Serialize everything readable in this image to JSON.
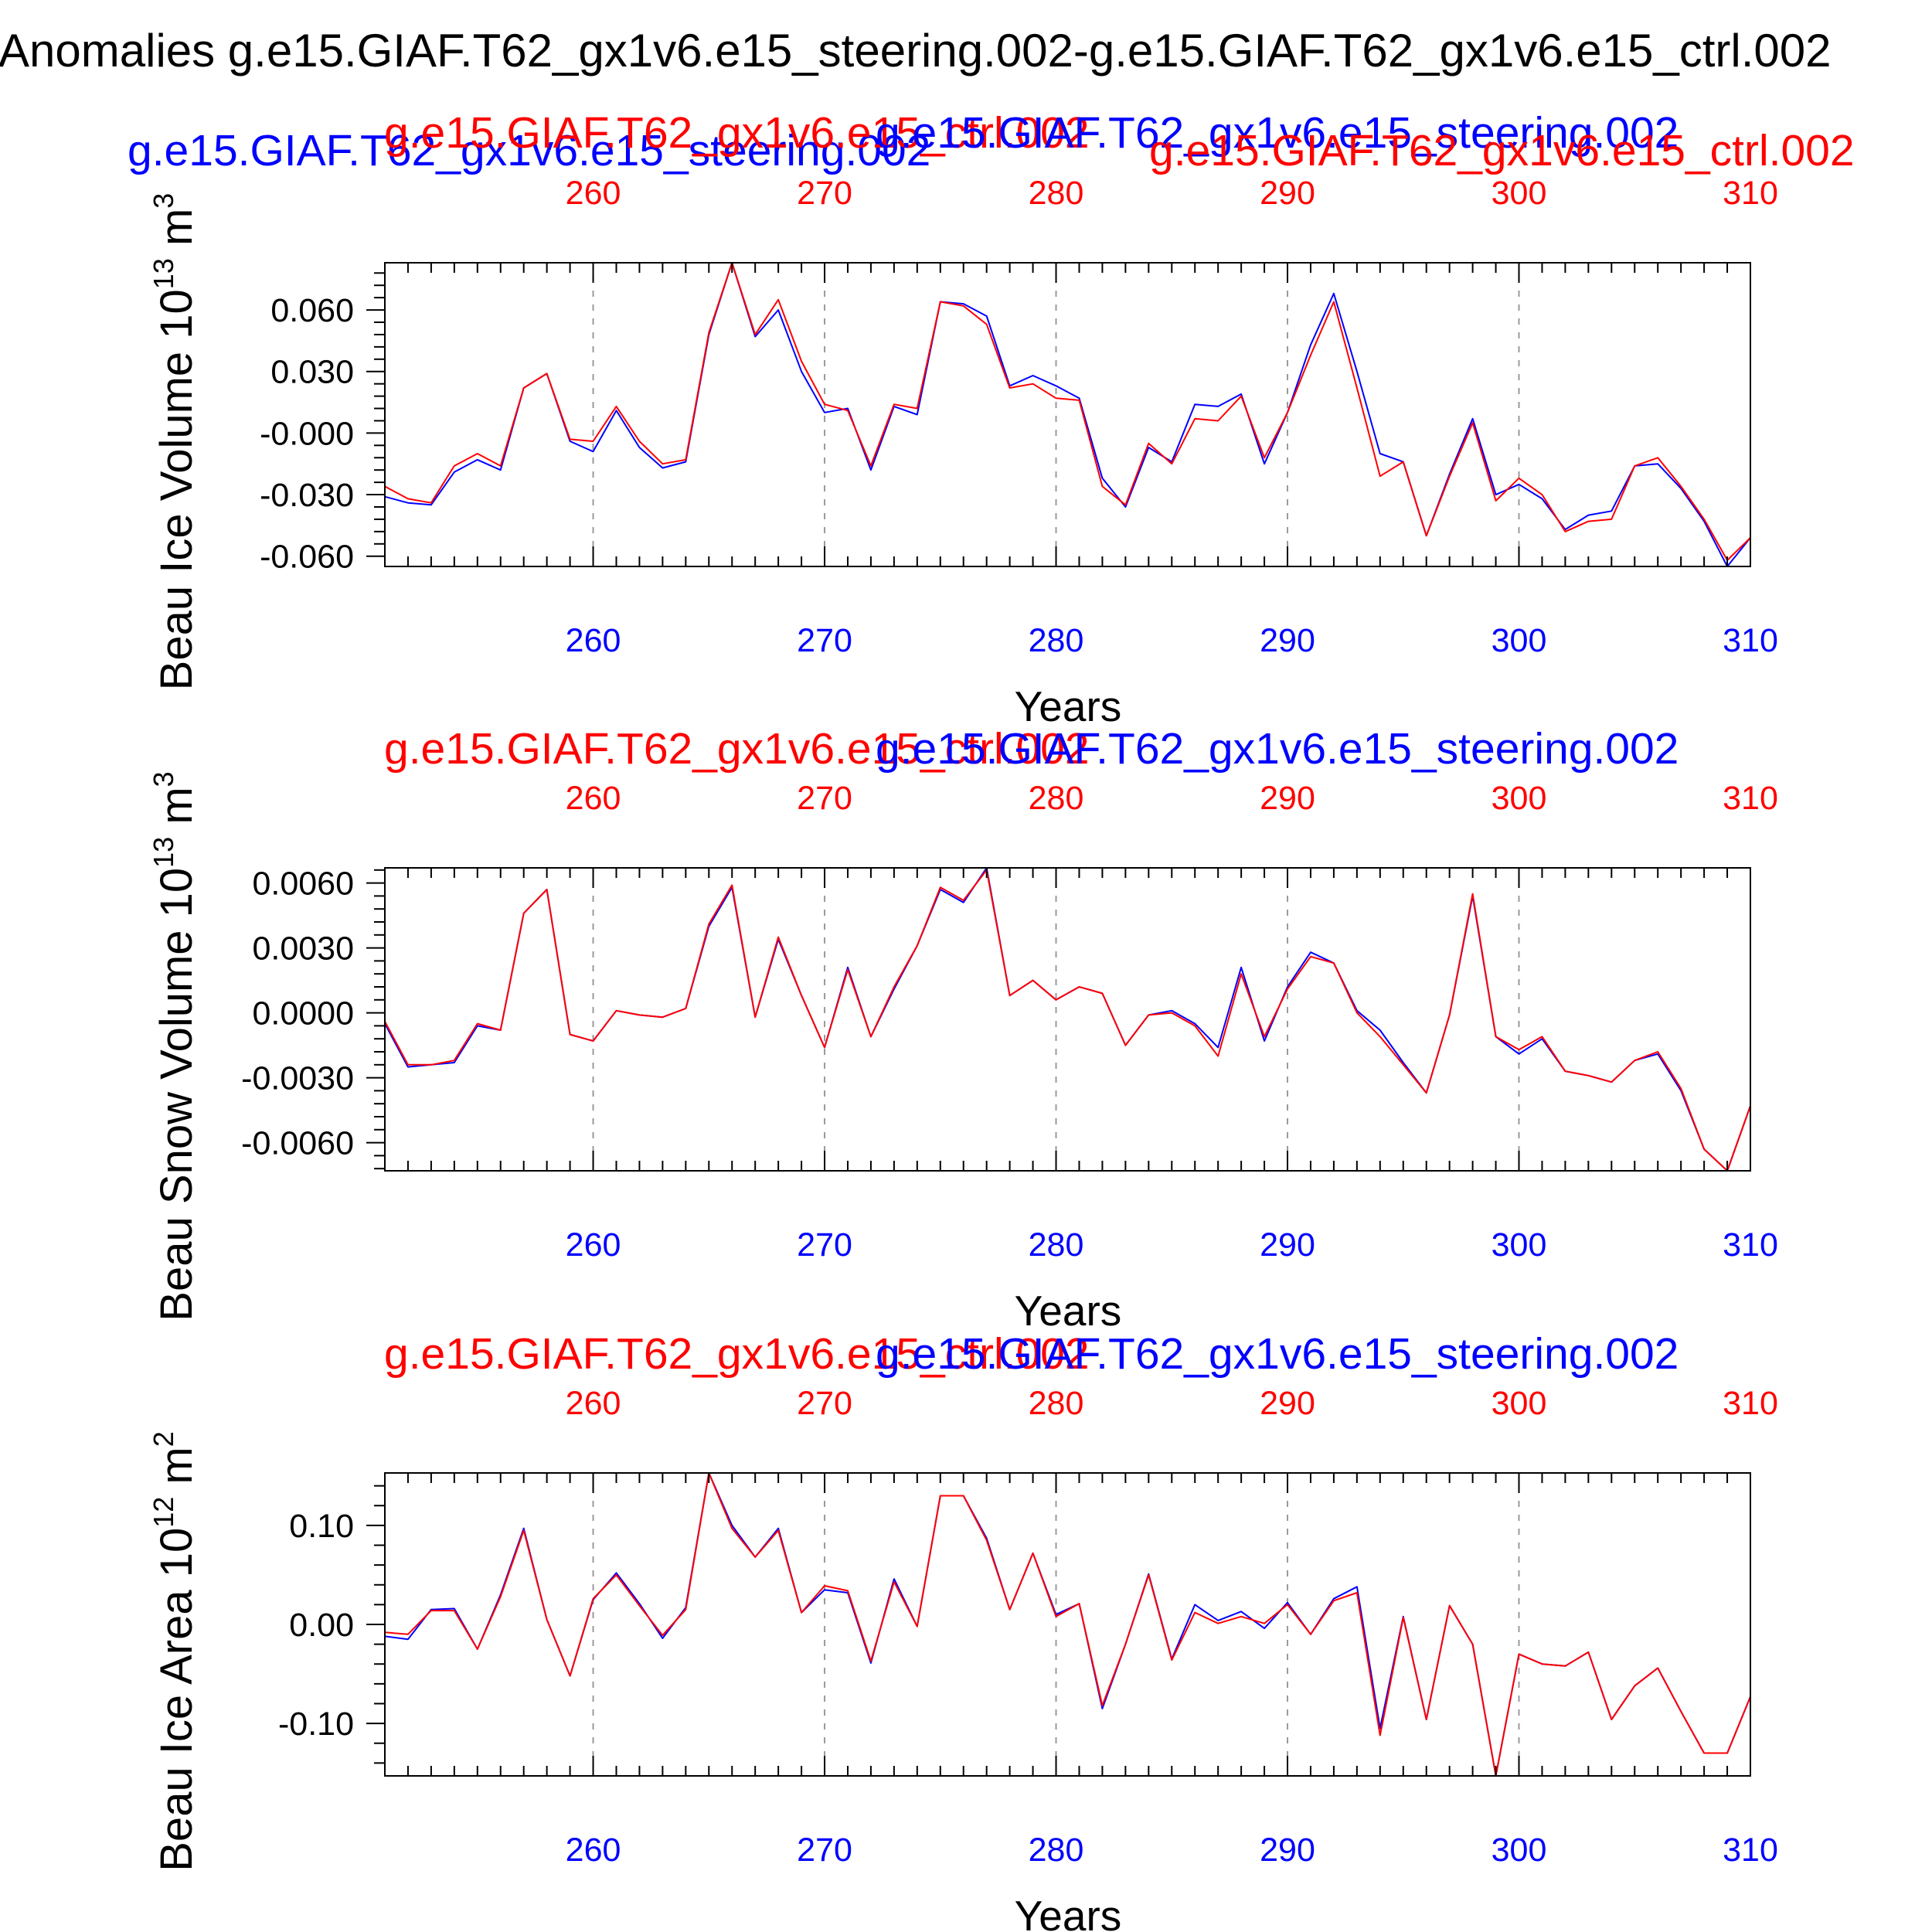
{
  "figure": {
    "title": "Anomalies g.e15.GIAF.T62_gx1v6.e15_steering.002-g.e15.GIAF.T62_gx1v6.e15_ctrl.002"
  },
  "colors": {
    "steering": "#0000ff",
    "ctrl": "#ff0000",
    "axis": "#000000",
    "grid": "#9a9a9a"
  },
  "chart_data": [
    {
      "type": "line",
      "ylabel": "Beau Ice Volume 10",
      "ylabel_exp": "13",
      "ylabel_unit": " m",
      "ylabel_unit_exp": "3",
      "xlabel": "Years",
      "xlim": [
        251,
        310
      ],
      "ylim": [
        -0.065,
        0.083
      ],
      "yticks": [
        -0.06,
        -0.03,
        0.0,
        0.03,
        0.06
      ],
      "yticklabels": [
        "-0.060",
        "-0.030",
        "-0.000",
        "0.030",
        "0.060"
      ],
      "xticks": [
        260,
        270,
        280,
        290,
        300,
        310
      ],
      "xticklabels": [
        "260",
        "270",
        "280",
        "290",
        "300",
        "310"
      ],
      "top_legend": [
        {
          "text": "g.e15.GIAF.T62_gx1v6.e15_steering.002",
          "color": "#0000ff",
          "slot": "left"
        },
        {
          "text": "g.e15.GIAF.T62_gx1v6.e15_ctrl.002",
          "color": "#ff0000",
          "slot": "center"
        },
        {
          "text": "g.e15.GIAF.T62_gx1v6.e15_steering.002",
          "color": "#0000ff",
          "slot": "center-right"
        },
        {
          "text": "g.e15.GIAF.T62_gx1v6.e15_ctrl.002",
          "color": "#ff0000",
          "slot": "right"
        }
      ],
      "x": [
        251,
        252,
        253,
        254,
        255,
        256,
        257,
        258,
        259,
        260,
        261,
        262,
        263,
        264,
        265,
        266,
        267,
        268,
        269,
        270,
        271,
        272,
        273,
        274,
        275,
        276,
        277,
        278,
        279,
        280,
        281,
        282,
        283,
        284,
        285,
        286,
        287,
        288,
        289,
        290,
        291,
        292,
        293,
        294,
        295,
        296,
        297,
        298,
        299,
        300,
        301,
        302,
        303,
        304,
        305,
        306,
        307,
        308,
        309,
        310
      ],
      "series": [
        {
          "name": "g.e15.GIAF.T62_gx1v6.e15_steering.002",
          "color": "#0000ff",
          "values": [
            -0.031,
            -0.034,
            -0.035,
            -0.019,
            -0.013,
            -0.018,
            0.022,
            0.029,
            -0.004,
            -0.009,
            0.011,
            -0.007,
            -0.017,
            -0.014,
            0.048,
            0.083,
            0.047,
            0.06,
            0.03,
            0.01,
            0.012,
            -0.018,
            0.013,
            0.009,
            0.064,
            0.063,
            0.057,
            0.023,
            0.028,
            0.023,
            0.017,
            -0.022,
            -0.036,
            -0.007,
            -0.014,
            0.014,
            0.013,
            0.019,
            -0.015,
            0.01,
            0.043,
            0.068,
            0.03,
            -0.01,
            -0.014,
            -0.05,
            -0.02,
            0.007,
            -0.03,
            -0.025,
            -0.032,
            -0.047,
            -0.04,
            -0.038,
            -0.016,
            -0.015,
            -0.027,
            -0.043,
            -0.065,
            -0.051
          ]
        },
        {
          "name": "g.e15.GIAF.T62_gx1v6.e15_ctrl.002",
          "color": "#ff0000",
          "values": [
            -0.026,
            -0.032,
            -0.034,
            -0.016,
            -0.01,
            -0.016,
            0.022,
            0.029,
            -0.003,
            -0.004,
            0.013,
            -0.004,
            -0.015,
            -0.013,
            0.049,
            0.083,
            0.048,
            0.065,
            0.035,
            0.014,
            0.011,
            -0.016,
            0.014,
            0.012,
            0.064,
            0.062,
            0.053,
            0.022,
            0.024,
            0.017,
            0.016,
            -0.026,
            -0.035,
            -0.005,
            -0.015,
            0.007,
            0.006,
            0.018,
            -0.012,
            0.01,
            0.038,
            0.064,
            0.022,
            -0.021,
            -0.014,
            -0.05,
            -0.021,
            0.005,
            -0.033,
            -0.022,
            -0.03,
            -0.048,
            -0.043,
            -0.042,
            -0.016,
            -0.012,
            -0.026,
            -0.042,
            -0.062,
            -0.051
          ]
        }
      ]
    },
    {
      "type": "line",
      "ylabel": "Beau Snow Volume 10",
      "ylabel_exp": "13",
      "ylabel_unit": " m",
      "ylabel_unit_exp": "3",
      "xlabel": "Years",
      "xlim": [
        251,
        310
      ],
      "ylim": [
        -0.0073,
        0.0067
      ],
      "yticks": [
        -0.006,
        -0.003,
        0.0,
        0.003,
        0.006
      ],
      "yticklabels": [
        "-0.0060",
        "-0.0030",
        "0.0000",
        "0.0030",
        "0.0060"
      ],
      "xticks": [
        260,
        270,
        280,
        290,
        300,
        310
      ],
      "xticklabels": [
        "260",
        "270",
        "280",
        "290",
        "300",
        "310"
      ],
      "top_legend": [
        {
          "text": "g.e15.GIAF.T62_gx1v6.e15_ctrl.002",
          "color": "#ff0000",
          "slot": "center"
        },
        {
          "text": "g.e15.GIAF.T62_gx1v6.e15_steering.002",
          "color": "#0000ff",
          "slot": "center-right"
        }
      ],
      "x": [
        251,
        252,
        253,
        254,
        255,
        256,
        257,
        258,
        259,
        260,
        261,
        262,
        263,
        264,
        265,
        266,
        267,
        268,
        269,
        270,
        271,
        272,
        273,
        274,
        275,
        276,
        277,
        278,
        279,
        280,
        281,
        282,
        283,
        284,
        285,
        286,
        287,
        288,
        289,
        290,
        291,
        292,
        293,
        294,
        295,
        296,
        297,
        298,
        299,
        300,
        301,
        302,
        303,
        304,
        305,
        306,
        307,
        308,
        309,
        310
      ],
      "series": [
        {
          "name": "g.e15.GIAF.T62_gx1v6.e15_steering.002",
          "color": "#0000ff",
          "values": [
            -0.0005,
            -0.0025,
            -0.0024,
            -0.0023,
            -0.0006,
            -0.0008,
            0.0046,
            0.0057,
            -0.001,
            -0.0013,
            0.0001,
            -0.0001,
            -0.0002,
            0.0002,
            0.004,
            0.0058,
            -0.0002,
            0.0034,
            0.0008,
            -0.0016,
            0.0021,
            -0.0011,
            0.0011,
            0.0031,
            0.0057,
            0.0051,
            0.0067,
            0.0008,
            0.0015,
            0.0006,
            0.0012,
            0.0009,
            -0.0015,
            -0.0001,
            0.0001,
            -0.0005,
            -0.0016,
            0.0021,
            -0.0013,
            0.0012,
            0.0028,
            0.0023,
            0.0001,
            -0.0008,
            -0.0023,
            -0.0037,
            -0.0001,
            0.0054,
            -0.0011,
            -0.0019,
            -0.0012,
            -0.0027,
            -0.0029,
            -0.0032,
            -0.0022,
            -0.0019,
            -0.0036,
            -0.0063,
            -0.0073,
            -0.0043
          ]
        },
        {
          "name": "g.e15.GIAF.T62_gx1v6.e15_ctrl.002",
          "color": "#ff0000",
          "values": [
            -0.0004,
            -0.0024,
            -0.0024,
            -0.0022,
            -0.0005,
            -0.0008,
            0.0046,
            0.0057,
            -0.001,
            -0.0013,
            0.0001,
            -0.0001,
            -0.0002,
            0.0002,
            0.0041,
            0.0059,
            -0.0002,
            0.0035,
            0.0008,
            -0.0016,
            0.002,
            -0.0011,
            0.0012,
            0.0031,
            0.0058,
            0.0052,
            0.0066,
            0.0008,
            0.0015,
            0.0006,
            0.0012,
            0.0009,
            -0.0015,
            -0.0001,
            0.0,
            -0.0006,
            -0.002,
            0.0018,
            -0.0011,
            0.0011,
            0.0026,
            0.0023,
            0.0,
            -0.0011,
            -0.0024,
            -0.0037,
            -0.0001,
            0.0055,
            -0.0011,
            -0.0017,
            -0.0011,
            -0.0027,
            -0.0029,
            -0.0032,
            -0.0022,
            -0.0018,
            -0.0035,
            -0.0063,
            -0.0073,
            -0.0043
          ]
        }
      ]
    },
    {
      "type": "line",
      "ylabel": "Beau Ice Area 10",
      "ylabel_exp": "12",
      "ylabel_unit": " m",
      "ylabel_unit_exp": "2",
      "xlabel": "Years",
      "xlim": [
        251,
        310
      ],
      "ylim": [
        -0.153,
        0.153
      ],
      "yticks": [
        -0.1,
        0.0,
        0.1
      ],
      "yticklabels": [
        "-0.10",
        "0.00",
        "0.10"
      ],
      "xticks": [
        260,
        270,
        280,
        290,
        300,
        310
      ],
      "xticklabels": [
        "260",
        "270",
        "280",
        "290",
        "300",
        "310"
      ],
      "top_legend": [
        {
          "text": "g.e15.GIAF.T62_gx1v6.e15_ctrl.002",
          "color": "#ff0000",
          "slot": "center"
        },
        {
          "text": "g.e15.GIAF.T62_gx1v6.e15_steering.002",
          "color": "#0000ff",
          "slot": "center-right"
        }
      ],
      "x": [
        251,
        252,
        253,
        254,
        255,
        256,
        257,
        258,
        259,
        260,
        261,
        262,
        263,
        264,
        265,
        266,
        267,
        268,
        269,
        270,
        271,
        272,
        273,
        274,
        275,
        276,
        277,
        278,
        279,
        280,
        281,
        282,
        283,
        284,
        285,
        286,
        287,
        288,
        289,
        290,
        291,
        292,
        293,
        294,
        295,
        296,
        297,
        298,
        299,
        300,
        301,
        302,
        303,
        304,
        305,
        306,
        307,
        308,
        309,
        310
      ],
      "series": [
        {
          "name": "g.e15.GIAF.T62_gx1v6.e15_steering.002",
          "color": "#0000ff",
          "values": [
            -0.012,
            -0.015,
            0.015,
            0.016,
            -0.025,
            0.03,
            0.097,
            0.005,
            -0.052,
            0.025,
            0.052,
            0.021,
            -0.014,
            0.017,
            0.153,
            0.1,
            0.068,
            0.097,
            0.012,
            0.035,
            0.032,
            -0.039,
            0.046,
            -0.002,
            0.13,
            0.13,
            0.087,
            0.015,
            0.072,
            0.01,
            0.021,
            -0.085,
            -0.02,
            0.051,
            -0.035,
            0.02,
            0.004,
            0.013,
            -0.004,
            0.022,
            -0.01,
            0.026,
            0.038,
            -0.105,
            0.008,
            -0.096,
            0.019,
            -0.02,
            -0.153,
            -0.03,
            -0.04,
            -0.042,
            -0.028,
            -0.096,
            -0.062,
            -0.044,
            -0.088,
            -0.13,
            -0.13,
            -0.073
          ]
        },
        {
          "name": "g.e15.GIAF.T62_gx1v6.e15_ctrl.002",
          "color": "#ff0000",
          "values": [
            -0.008,
            -0.01,
            0.014,
            0.014,
            -0.025,
            0.028,
            0.095,
            0.005,
            -0.052,
            0.026,
            0.05,
            0.019,
            -0.011,
            0.015,
            0.153,
            0.097,
            0.068,
            0.095,
            0.012,
            0.039,
            0.034,
            -0.037,
            0.043,
            -0.002,
            0.13,
            0.13,
            0.085,
            0.015,
            0.072,
            0.008,
            0.021,
            -0.082,
            -0.02,
            0.05,
            -0.036,
            0.012,
            0.001,
            0.008,
            0.001,
            0.02,
            -0.01,
            0.024,
            0.032,
            -0.112,
            0.007,
            -0.096,
            0.019,
            -0.02,
            -0.153,
            -0.03,
            -0.04,
            -0.042,
            -0.028,
            -0.096,
            -0.062,
            -0.044,
            -0.088,
            -0.13,
            -0.13,
            -0.073
          ]
        }
      ]
    }
  ]
}
